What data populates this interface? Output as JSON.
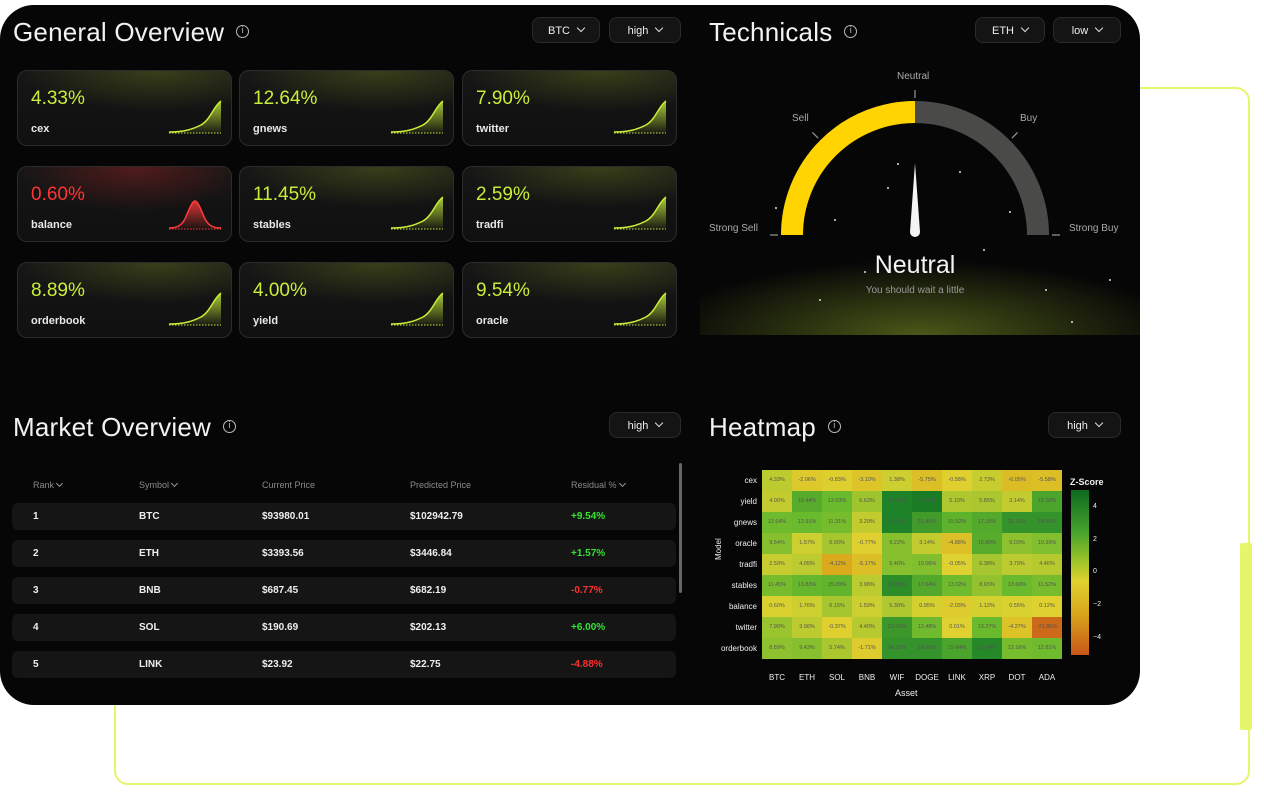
{
  "general": {
    "title": "General Overview",
    "asset": "BTC",
    "level": "high",
    "cards": [
      {
        "pct": "4.33%",
        "label": "cex",
        "trend": "up"
      },
      {
        "pct": "12.64%",
        "label": "gnews",
        "trend": "up"
      },
      {
        "pct": "7.90%",
        "label": "twitter",
        "trend": "up"
      },
      {
        "pct": "0.60%",
        "label": "balance",
        "trend": "down"
      },
      {
        "pct": "11.45%",
        "label": "stables",
        "trend": "up"
      },
      {
        "pct": "2.59%",
        "label": "tradfi",
        "trend": "up"
      },
      {
        "pct": "8.89%",
        "label": "orderbook",
        "trend": "up"
      },
      {
        "pct": "4.00%",
        "label": "yield",
        "trend": "up"
      },
      {
        "pct": "9.54%",
        "label": "oracle",
        "trend": "up"
      }
    ]
  },
  "technicals": {
    "title": "Technicals",
    "asset": "ETH",
    "level": "low",
    "labels": {
      "strong_sell": "Strong Sell",
      "sell": "Sell",
      "neutral": "Neutral",
      "buy": "Buy",
      "strong_buy": "Strong Buy"
    },
    "status": "Neutral",
    "advice": "You should wait a little",
    "gauge_fraction": 0.5,
    "fill_color": "#ffd400",
    "track_color": "#4a4a48"
  },
  "market": {
    "title": "Market Overview",
    "level": "high",
    "columns": [
      "Rank",
      "Symbol",
      "Current Price",
      "Predicted Price",
      "Residual %"
    ],
    "rows": [
      [
        "1",
        "BTC",
        "$93980.01",
        "$102942.79",
        "+9.54%"
      ],
      [
        "2",
        "ETH",
        "$3393.56",
        "$3446.84",
        "+1.57%"
      ],
      [
        "3",
        "BNB",
        "$687.45",
        "$682.19",
        "-0.77%"
      ],
      [
        "4",
        "SOL",
        "$190.69",
        "$202.13",
        "+6.00%"
      ],
      [
        "5",
        "LINK",
        "$23.92",
        "$22.75",
        "-4.88%"
      ]
    ]
  },
  "heatmap": {
    "title": "Heatmap",
    "level": "high",
    "ylabel": "Model",
    "xlabel": "Asset",
    "colorbar_title": "Z-Score",
    "colorbar_ticks": [
      "4",
      "2",
      "0",
      "−2",
      "−4"
    ],
    "models": [
      "cex",
      "yield",
      "gnews",
      "oracle",
      "tradfi",
      "stables",
      "balance",
      "twitter",
      "orderbook"
    ],
    "assets": [
      "BTC",
      "ETH",
      "SOL",
      "BNB",
      "WIF",
      "DOGE",
      "LINK",
      "XRP",
      "DOT",
      "ADA"
    ],
    "values": [
      [
        "4.33%",
        "-2.06%",
        "-0.83%",
        "-3.10%",
        "1.38%",
        "-5.75%",
        "-0.58%",
        "2.73%",
        "-6.05%",
        "-5.58%"
      ],
      [
        "4.00%",
        "16.44%",
        "13.03%",
        "6.63%",
        "35.14%",
        "42.20%",
        "5.10%",
        "5.85%",
        "3.14%",
        "19.10%"
      ],
      [
        "12.64%",
        "12.91%",
        "11.31%",
        "3.29%",
        "35.51%",
        "21.46%",
        "15.52%",
        "17.15%",
        "25.13%",
        "24.50%"
      ],
      [
        "9.54%",
        "1.57%",
        "6.00%",
        "-0.77%",
        "9.22%",
        "3.14%",
        "-4.88%",
        "16.80%",
        "9.03%",
        "10.39%"
      ],
      [
        "2.59%",
        "4.05%",
        "-4.12%",
        "-5.17%",
        "9.40%",
        "10.06%",
        "-0.05%",
        "6.38%",
        "3.79%",
        "4.46%"
      ],
      [
        "11.45%",
        "13.83%",
        "15.09%",
        "3.98%",
        "28.55%",
        "17.64%",
        "13.02%",
        "8.65%",
        "13.60%",
        "11.52%"
      ],
      [
        "0.60%",
        "1.76%",
        "6.15%",
        "1.59%",
        "5.30%",
        "0.95%",
        "-2.03%",
        "1.12%",
        "0.55%",
        "0.12%"
      ],
      [
        "7.90%",
        "3.96%",
        "-0.37%",
        "4.40%",
        "23.01%",
        "12.48%",
        "0.01%",
        "13.27%",
        "-4.27%",
        "-21.86%"
      ],
      [
        "8.89%",
        "9.43%",
        "5.74%",
        "-1.71%",
        "24.52%",
        "24.60%",
        "19.64%",
        "32.54%",
        "12.16%",
        "12.81%"
      ]
    ],
    "zscores": [
      [
        0.6,
        -0.4,
        -0.2,
        -0.6,
        0.3,
        -0.9,
        -0.1,
        0.4,
        -1.0,
        -0.9
      ],
      [
        0.5,
        2.5,
        2.0,
        1.1,
        4.0,
        4.2,
        0.8,
        0.9,
        0.5,
        2.8
      ],
      [
        1.9,
        2.0,
        1.8,
        0.5,
        4.0,
        3.1,
        2.3,
        2.6,
        3.4,
        3.4
      ],
      [
        1.5,
        0.3,
        1.0,
        -0.1,
        1.5,
        0.5,
        -0.8,
        2.5,
        1.4,
        1.6
      ],
      [
        0.4,
        0.6,
        -1.8,
        -0.9,
        1.5,
        1.6,
        0.0,
        1.0,
        0.6,
        0.7
      ],
      [
        1.8,
        2.1,
        2.2,
        0.6,
        3.6,
        2.6,
        1.9,
        1.3,
        2.0,
        1.8
      ],
      [
        0.1,
        0.3,
        1.0,
        0.3,
        0.8,
        0.2,
        -0.3,
        0.2,
        0.1,
        0.0
      ],
      [
        1.2,
        0.6,
        -0.1,
        0.7,
        3.2,
        1.9,
        0.0,
        2.0,
        -0.7,
        -3.5
      ],
      [
        1.4,
        1.5,
        0.9,
        -0.3,
        3.4,
        3.4,
        2.8,
        3.8,
        1.8,
        1.9
      ]
    ]
  }
}
